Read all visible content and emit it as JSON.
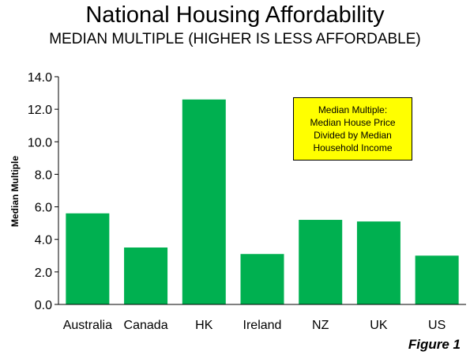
{
  "chart_data": {
    "type": "bar",
    "title": "National Housing Affordability",
    "subtitle": "MEDIAN MULTIPLE (HIGHER IS LESS AFFORDABLE)",
    "xlabel": "",
    "ylabel": "Median Multiple",
    "categories": [
      "Australia",
      "Canada",
      "HK",
      "Ireland",
      "NZ",
      "UK",
      "US"
    ],
    "values": [
      5.6,
      3.5,
      12.6,
      3.1,
      5.2,
      5.1,
      3.0
    ],
    "ylim": [
      0,
      14
    ],
    "yticks": [
      "0.0",
      "2.0",
      "4.0",
      "6.0",
      "8.0",
      "10.0",
      "12.0",
      "14.0"
    ],
    "grid": false,
    "bar_color": "#00b050",
    "annotation": {
      "lines": [
        "Median Multiple:",
        "Median House Price",
        "Divided by Median",
        "Household Income"
      ],
      "background": "#ffff00"
    }
  },
  "figure_label": "Figure 1"
}
